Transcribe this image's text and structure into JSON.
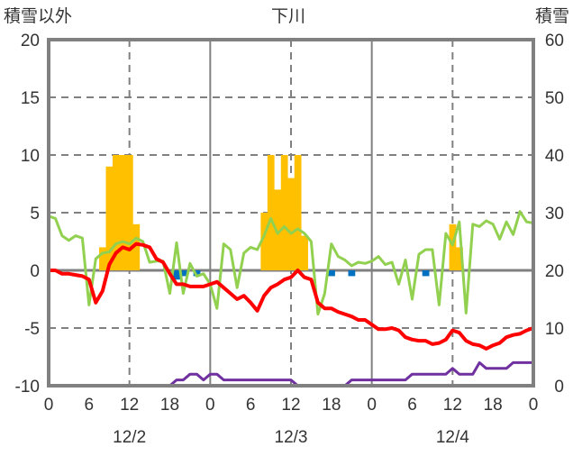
{
  "chart_data": {
    "type": "bar+line",
    "title": "下川",
    "ylabel_left": "積雪以外",
    "ylabel_right": "積雪",
    "ylim_left": [
      -10,
      20
    ],
    "ylim_right": [
      0,
      60
    ],
    "yticks_left": [
      "20",
      "15",
      "10",
      "5",
      "0",
      "-5",
      "-10"
    ],
    "yticks_right": [
      "60",
      "50",
      "40",
      "30",
      "20",
      "10",
      "0"
    ],
    "x_hours_range": [
      0,
      72
    ],
    "xtick_labels": [
      "0",
      "6",
      "12",
      "18",
      "0",
      "6",
      "12",
      "18",
      "0",
      "6",
      "12",
      "18",
      "0"
    ],
    "date_labels": [
      "12/2",
      "12/3",
      "12/4"
    ],
    "grid": true,
    "series": [
      {
        "name": "precipitation",
        "type": "bar",
        "axis": "left",
        "color": "#FFC000",
        "bars": [
          [
            7.5,
            2
          ],
          [
            8.5,
            9
          ],
          [
            9.5,
            10
          ],
          [
            10.5,
            10
          ],
          [
            11.5,
            10
          ],
          [
            12.5,
            4
          ],
          [
            31.5,
            5
          ],
          [
            32.5,
            10
          ],
          [
            33.5,
            7
          ],
          [
            34.5,
            10
          ],
          [
            35.5,
            8
          ],
          [
            36.5,
            10
          ],
          [
            37.5,
            3
          ],
          [
            59.5,
            4
          ],
          [
            60.5,
            2
          ]
        ]
      },
      {
        "name": "negative-bars",
        "type": "bar",
        "axis": "left",
        "color": "#0070C0",
        "bars": [
          [
            18.5,
            -0.8
          ],
          [
            19.5,
            -0.5
          ],
          [
            21.5,
            -0.5
          ],
          [
            41.5,
            -0.5
          ],
          [
            44.5,
            -0.5
          ],
          [
            55.5,
            -0.5
          ]
        ]
      },
      {
        "name": "green-series",
        "type": "line",
        "axis": "left",
        "color": "#92D050",
        "values": [
          4.7,
          4.5,
          3,
          2.6,
          3,
          2.8,
          -3,
          1,
          1.5,
          1.6,
          2.3,
          2.5,
          2.3,
          2.8,
          2.5,
          0.7,
          0.8,
          0.8,
          -2,
          2.4,
          -2,
          0.6,
          -0.5,
          -0.3,
          -1.2,
          -3.3,
          2.3,
          1.8,
          -1.5,
          1.5,
          2,
          1.8,
          3,
          4.5,
          3.2,
          3.8,
          3.2,
          3.6,
          3.2,
          2.5,
          -3.8,
          -2,
          2.3,
          1.2,
          0.9,
          0.4,
          0.7,
          0.6,
          0.8,
          1.2,
          0.5,
          0.7,
          -1.2,
          0.9,
          -2.5,
          1.4,
          1.8,
          1.8,
          -3,
          3.2,
          2.2,
          4.2,
          -3.7,
          4,
          3.8,
          4.3,
          4,
          2.7,
          4.2,
          3.1,
          5.1,
          4.2,
          4.1
        ]
      },
      {
        "name": "temperature",
        "type": "line",
        "axis": "left",
        "color": "#FF0000",
        "values": [
          0,
          0,
          -0.3,
          -0.3,
          -0.4,
          -0.5,
          -0.8,
          -2.8,
          -1.8,
          0.5,
          1.5,
          2,
          1.8,
          2.3,
          2.2,
          2,
          1,
          0.7,
          -0.3,
          -1.2,
          -1.2,
          -1.4,
          -1.4,
          -1.4,
          -1.2,
          -1.0,
          -1.5,
          -2,
          -2.5,
          -2.2,
          -2.8,
          -3.5,
          -2.2,
          -1.5,
          -1.2,
          -0.8,
          -0.6,
          0,
          -0.6,
          -0.8,
          -2.8,
          -3.3,
          -3.3,
          -3.6,
          -3.8,
          -4,
          -4.3,
          -4.3,
          -4.7,
          -5.1,
          -5.1,
          -5,
          -5.2,
          -5.8,
          -6,
          -6.1,
          -6.1,
          -6.4,
          -6.3,
          -6,
          -5.2,
          -5.4,
          -6.1,
          -6.4,
          -6.5,
          -6.8,
          -6.5,
          -6.3,
          -5.8,
          -5.6,
          -5.5,
          -5.2,
          -5
        ]
      },
      {
        "name": "snow-depth",
        "type": "line",
        "axis": "right",
        "color": "#7030A0",
        "values": [
          0,
          0,
          0,
          0,
          0,
          0,
          0,
          0,
          0,
          0,
          0,
          0,
          0,
          0,
          0,
          0,
          0,
          0,
          0,
          1,
          1,
          2,
          2,
          1,
          2,
          2,
          1,
          1,
          1,
          1,
          1,
          1,
          1,
          1,
          1,
          1,
          1,
          0,
          0,
          0,
          0,
          0,
          0,
          0,
          0,
          1,
          1,
          1,
          1,
          1,
          1,
          1,
          1,
          1,
          2,
          2,
          2,
          2,
          2,
          2,
          3,
          2,
          2,
          2,
          4,
          3,
          3,
          3,
          3,
          4,
          4,
          4,
          4
        ]
      }
    ]
  }
}
